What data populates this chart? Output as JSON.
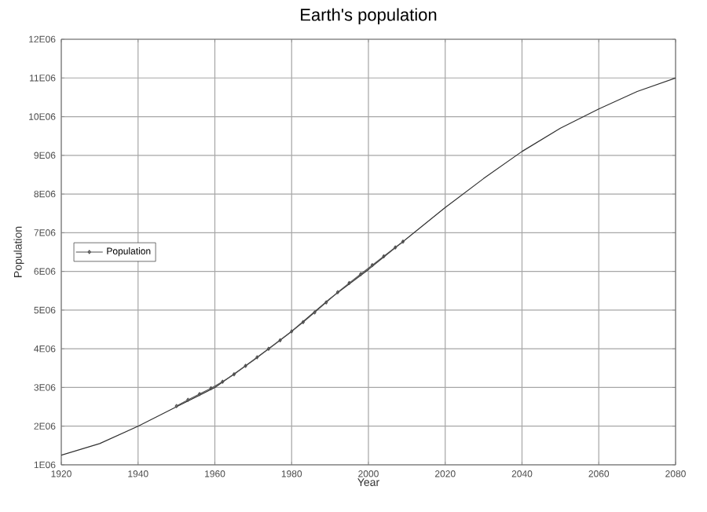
{
  "chart_data": {
    "type": "line",
    "title": "Earth's population",
    "xlabel": "Year",
    "ylabel": "Population",
    "xlim": [
      1920,
      2080
    ],
    "xticks": [
      1920,
      1940,
      1960,
      1980,
      2000,
      2020,
      2040,
      2060,
      2080
    ],
    "ylim": [
      1000000,
      12000000
    ],
    "yticks": [
      {
        "value": 1000000,
        "label": "1E06"
      },
      {
        "value": 2000000,
        "label": "2E06"
      },
      {
        "value": 3000000,
        "label": "3E06"
      },
      {
        "value": 4000000,
        "label": "4E06"
      },
      {
        "value": 5000000,
        "label": "5E06"
      },
      {
        "value": 6000000,
        "label": "6E06"
      },
      {
        "value": 7000000,
        "label": "7E06"
      },
      {
        "value": 8000000,
        "label": "8E06"
      },
      {
        "value": 9000000,
        "label": "9E06"
      },
      {
        "value": 10000000,
        "label": "10E06"
      },
      {
        "value": 11000000,
        "label": "11E06"
      },
      {
        "value": 12000000,
        "label": "12E06"
      }
    ],
    "grid": true,
    "legend": "left",
    "series": [
      {
        "color": "#303030",
        "marker": "none",
        "x": [
          1920,
          1930,
          1940,
          1950,
          1960,
          1970,
          1980,
          1990,
          2000,
          2010,
          2020,
          2030,
          2040,
          2050,
          2060,
          2070,
          2080
        ],
        "values": [
          1250000,
          1550000,
          2000000,
          2500000,
          3000000,
          3700000,
          4450000,
          5300000,
          6050000,
          6850000,
          7650000,
          8400000,
          9100000,
          9700000,
          10200000,
          10650000,
          11000000
        ]
      },
      {
        "name": "Population",
        "color": "#505050",
        "marker": "diamond",
        "x": [
          1950,
          1953,
          1956,
          1959,
          1962,
          1965,
          1968,
          1971,
          1974,
          1977,
          1980,
          1983,
          1986,
          1989,
          1992,
          1995,
          1998,
          2001,
          2004,
          2007,
          2009
        ],
        "values": [
          2520000,
          2680000,
          2830000,
          2980000,
          3150000,
          3340000,
          3560000,
          3780000,
          4000000,
          4220000,
          4450000,
          4690000,
          4940000,
          5200000,
          5460000,
          5700000,
          5930000,
          6160000,
          6390000,
          6620000,
          6770000
        ]
      }
    ]
  }
}
